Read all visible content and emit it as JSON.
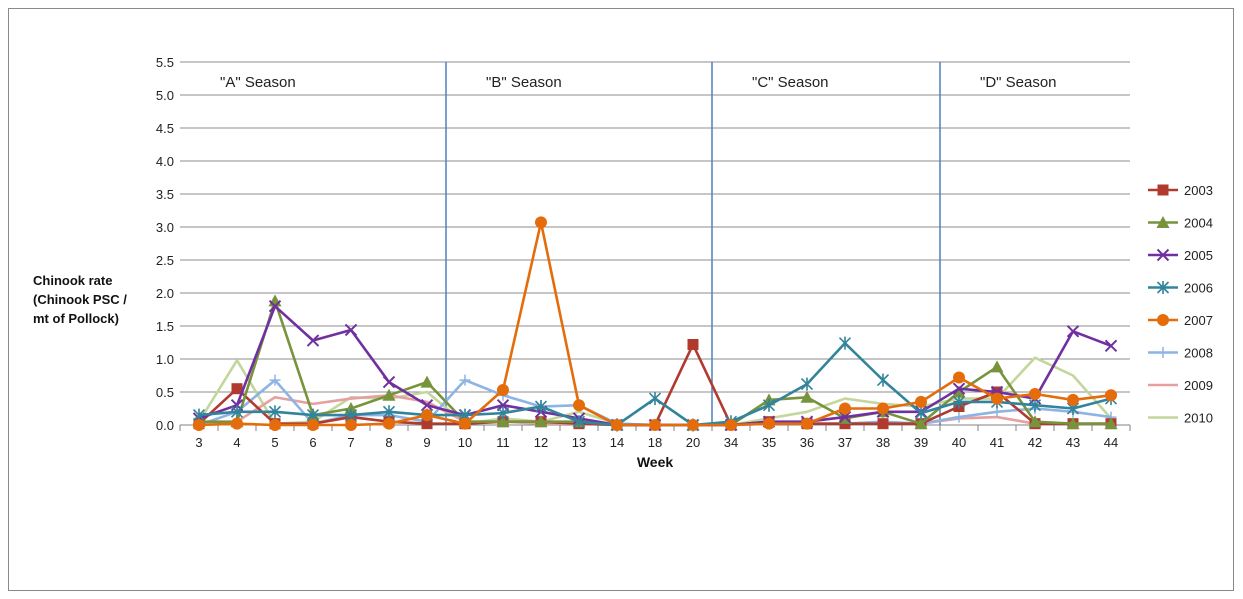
{
  "chart_data": {
    "type": "line",
    "xlabel": "Week",
    "ylabel_lines": [
      "Chinook rate",
      "(Chinook PSC /",
      "mt of Pollock)"
    ],
    "ylim": [
      0,
      5.5
    ],
    "yticks": [
      "0.0",
      "0.5",
      "1.0",
      "1.5",
      "2.0",
      "2.5",
      "3.0",
      "3.5",
      "4.0",
      "4.5",
      "5.0",
      "5.5"
    ],
    "categories": [
      "3",
      "4",
      "5",
      "6",
      "7",
      "8",
      "9",
      "10",
      "11",
      "12",
      "13",
      "14",
      "18",
      "20",
      "34",
      "35",
      "36",
      "37",
      "38",
      "39",
      "40",
      "41",
      "42",
      "43",
      "44"
    ],
    "seasons": [
      {
        "label": "\"A\" Season",
        "start_index": 0
      },
      {
        "label": "\"B\" Season",
        "start_index": 7
      },
      {
        "label": "\"C\" Season",
        "start_index": 14
      },
      {
        "label": "\"D\" Season",
        "start_index": 20
      }
    ],
    "season_dividers_between": [
      [
        6,
        7
      ],
      [
        13,
        14
      ],
      [
        19,
        20
      ]
    ],
    "grid": "horizontal",
    "legend_position": "right",
    "series": [
      {
        "name": "2003",
        "color": "#b03a2e",
        "marker": "square",
        "values": [
          0.02,
          0.55,
          0.02,
          0.02,
          0.12,
          0.05,
          0.02,
          0.02,
          0.05,
          0.05,
          0.02,
          0.0,
          0.0,
          1.22,
          0.0,
          0.05,
          0.02,
          0.02,
          0.02,
          0.02,
          0.28,
          0.5,
          0.02,
          0.02,
          0.02
        ]
      },
      {
        "name": "2004",
        "color": "#77933c",
        "marker": "triangle",
        "values": [
          0.05,
          0.05,
          1.88,
          0.15,
          0.25,
          0.45,
          0.65,
          0.05,
          0.05,
          0.05,
          0.05,
          0.0,
          0.0,
          0.0,
          0.0,
          0.38,
          0.42,
          0.1,
          0.2,
          0.02,
          0.5,
          0.88,
          0.05,
          0.02,
          0.02
        ]
      },
      {
        "name": "2005",
        "color": "#7030a0",
        "marker": "x",
        "values": [
          0.1,
          0.3,
          1.8,
          1.28,
          1.44,
          0.65,
          0.3,
          0.15,
          0.3,
          0.2,
          0.1,
          0.0,
          0.0,
          0.0,
          0.0,
          0.05,
          0.05,
          0.12,
          0.2,
          0.2,
          0.55,
          0.5,
          0.4,
          1.42,
          1.2
        ]
      },
      {
        "name": "2006",
        "color": "#31849b",
        "marker": "star",
        "values": [
          0.15,
          0.2,
          0.2,
          0.15,
          0.15,
          0.2,
          0.15,
          0.15,
          0.18,
          0.28,
          0.05,
          0.0,
          0.4,
          0.0,
          0.05,
          0.3,
          0.62,
          1.24,
          0.68,
          0.18,
          0.35,
          0.35,
          0.3,
          0.25,
          0.4
        ]
      },
      {
        "name": "2007",
        "color": "#e46c0a",
        "marker": "circle",
        "values": [
          0.0,
          0.02,
          0.0,
          0.0,
          0.0,
          0.02,
          0.15,
          0.02,
          0.53,
          3.07,
          0.3,
          0.0,
          0.0,
          0.0,
          0.0,
          0.02,
          0.02,
          0.25,
          0.25,
          0.35,
          0.72,
          0.4,
          0.47,
          0.38,
          0.45
        ]
      },
      {
        "name": "2008",
        "color": "#8eb4e3",
        "marker": "plus",
        "values": [
          0.0,
          0.2,
          0.68,
          0.02,
          0.15,
          0.15,
          0.05,
          0.68,
          0.45,
          0.28,
          0.3,
          0.02,
          0.0,
          0.0,
          0.0,
          0.02,
          0.02,
          0.02,
          0.05,
          0.02,
          0.12,
          0.2,
          0.25,
          0.2,
          0.12
        ]
      },
      {
        "name": "2009",
        "color": "#e6a0a0",
        "marker": "none",
        "values": [
          0.02,
          0.05,
          0.42,
          0.32,
          0.4,
          0.45,
          0.35,
          0.05,
          0.05,
          0.02,
          0.02,
          0.0,
          0.0,
          0.0,
          0.0,
          0.02,
          0.02,
          0.02,
          0.02,
          0.02,
          0.1,
          0.12,
          0.02,
          0.02,
          0.02
        ]
      },
      {
        "name": "2010",
        "color": "#c3d69b",
        "marker": "none",
        "values": [
          0.05,
          0.98,
          0.02,
          0.05,
          0.42,
          0.4,
          0.5,
          0.02,
          0.1,
          0.05,
          0.2,
          0.02,
          0.0,
          0.0,
          0.0,
          0.1,
          0.2,
          0.4,
          0.32,
          0.28,
          0.4,
          0.4,
          1.02,
          0.75,
          0.1
        ]
      }
    ]
  }
}
